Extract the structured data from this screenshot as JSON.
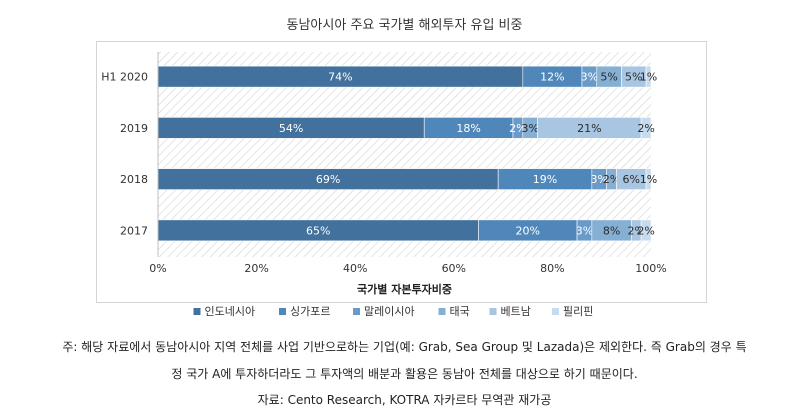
{
  "chart_data": {
    "type": "bar",
    "orientation": "horizontal",
    "stacked": true,
    "title": "동남아시아 주요 국가별 해외투자 유입 비중",
    "xlabel": "국가별 자본투자비중",
    "ylabel": "",
    "xlim": [
      0,
      100
    ],
    "x_ticks": [
      "0%",
      "20%",
      "40%",
      "60%",
      "80%",
      "100%"
    ],
    "categories": [
      "H1 2020",
      "2019",
      "2018",
      "2017"
    ],
    "legend_position": "bottom",
    "series": [
      {
        "name": "인도네시아",
        "color": "#41719c",
        "values": [
          74,
          54,
          69,
          65
        ],
        "labels": [
          "74%",
          "54%",
          "69%",
          "65%"
        ]
      },
      {
        "name": "싱가포르",
        "color": "#4f87ba",
        "values": [
          12,
          18,
          19,
          20
        ],
        "labels": [
          "12%",
          "18%",
          "19%",
          "20%"
        ]
      },
      {
        "name": "말레이시아",
        "color": "#6a9bc8",
        "values": [
          3,
          2,
          3,
          3
        ],
        "labels": [
          "3%",
          "2%",
          "3%",
          "3%"
        ]
      },
      {
        "name": "태국",
        "color": "#86afd4",
        "values": [
          5,
          3,
          2,
          8
        ],
        "labels": [
          "5%",
          "3%",
          "2%",
          "8%"
        ]
      },
      {
        "name": "베트남",
        "color": "#a8c6e2",
        "values": [
          5,
          21,
          6,
          2
        ],
        "labels": [
          "5%",
          "21%",
          "6%",
          "2%"
        ]
      },
      {
        "name": "필리핀",
        "color": "#c7dbee",
        "values": [
          1,
          2,
          1,
          2
        ],
        "labels": [
          "1%",
          "2%",
          "1%",
          "2%"
        ]
      }
    ]
  },
  "notes": {
    "line1": "주: 해당 자료에서 동남아시아 지역 전체를 사업 기반으로하는 기업(예: Grab, Sea Group 및 Lazada)은 제외한다. 즉 Grab의 경우 특",
    "line2": "정 국가 A에 투자하더라도 그 투자액의 배분과 활용은 동남아 전체를 대상으로 하기 때문이다.",
    "source": "자료: Cento Research, KOTRA 자카르타 무역관 재가공"
  }
}
